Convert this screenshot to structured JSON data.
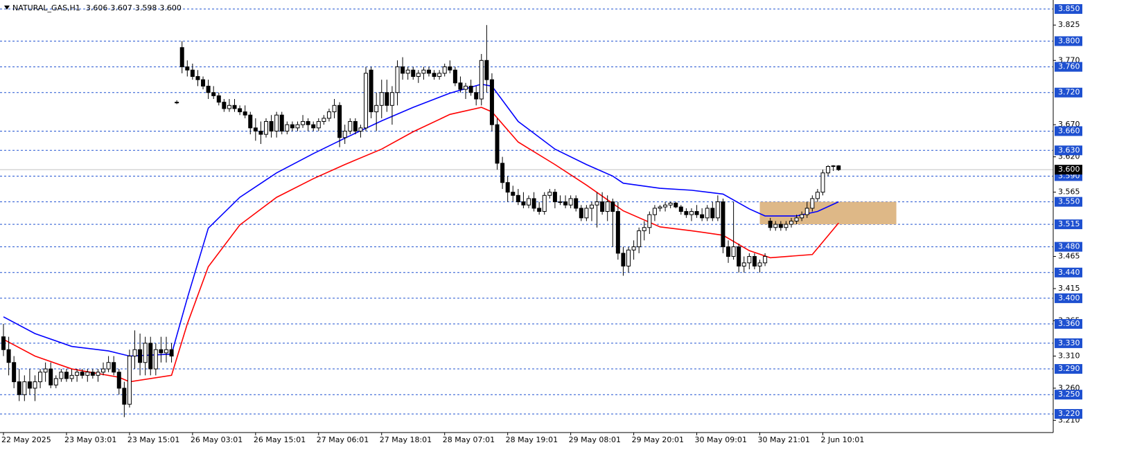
{
  "chart_data": {
    "type": "candlestick",
    "title": "NATURAL_GAS,H1",
    "header_values": [
      "3.606",
      "3.607",
      "3.598",
      "3.600"
    ],
    "ylim": [
      3.191,
      3.864
    ],
    "yticks": [
      {
        "value": 3.825,
        "label": "3.825"
      },
      {
        "value": 3.77,
        "label": "3.770"
      },
      {
        "value": 3.67,
        "label": "3.670"
      },
      {
        "value": 3.62,
        "label": "3.620"
      },
      {
        "value": 3.565,
        "label": "3.565"
      },
      {
        "value": 3.465,
        "label": "3.465"
      },
      {
        "value": 3.415,
        "label": "3.415"
      },
      {
        "value": 3.365,
        "label": "3.365"
      },
      {
        "value": 3.31,
        "label": "3.310"
      },
      {
        "value": 3.26,
        "label": "3.260"
      },
      {
        "value": 3.21,
        "label": "3.210"
      }
    ],
    "levels": [
      {
        "value": 3.85,
        "label": "3.850"
      },
      {
        "value": 3.8,
        "label": "3.800"
      },
      {
        "value": 3.76,
        "label": "3.760"
      },
      {
        "value": 3.72,
        "label": "3.720"
      },
      {
        "value": 3.66,
        "label": "3.660"
      },
      {
        "value": 3.63,
        "label": "3.630"
      },
      {
        "value": 3.59,
        "label": "3.590"
      },
      {
        "value": 3.55,
        "label": "3.550"
      },
      {
        "value": 3.515,
        "label": "3.515"
      },
      {
        "value": 3.48,
        "label": "3.480"
      },
      {
        "value": 3.44,
        "label": "3.440"
      },
      {
        "value": 3.4,
        "label": "3.400"
      },
      {
        "value": 3.36,
        "label": "3.360"
      },
      {
        "value": 3.33,
        "label": "3.330"
      },
      {
        "value": 3.29,
        "label": "3.290"
      },
      {
        "value": 3.25,
        "label": "3.250"
      },
      {
        "value": 3.22,
        "label": "3.220"
      }
    ],
    "level_color": "#1e50d0",
    "current_price": {
      "value": 3.6,
      "label": "3.600"
    },
    "zone": {
      "x": [
        144,
        170
      ],
      "y": [
        3.515,
        3.55
      ],
      "color": "#deb887"
    },
    "categories": [
      "22 May 2025",
      null,
      null,
      null,
      null,
      null,
      null,
      null,
      null,
      null,
      null,
      null,
      "23 May 03:01",
      null,
      null,
      null,
      null,
      null,
      null,
      null,
      null,
      null,
      null,
      null,
      "23 May 15:01",
      null,
      null,
      null,
      null,
      null,
      null,
      null,
      null,
      null,
      null,
      null,
      "26 May 03:01",
      null,
      null,
      null,
      null,
      null,
      null,
      null,
      null,
      null,
      null,
      null,
      "26 May 15:01",
      null,
      null,
      null,
      null,
      null,
      null,
      null,
      null,
      null,
      null,
      null,
      "27 May 06:01",
      null,
      null,
      null,
      null,
      null,
      null,
      null,
      null,
      null,
      null,
      null,
      "27 May 18:01",
      null,
      null,
      null,
      null,
      null,
      null,
      null,
      null,
      null,
      null,
      null,
      "28 May 07:01",
      null,
      null,
      null,
      null,
      null,
      null,
      null,
      null,
      null,
      null,
      null,
      "28 May 19:01",
      null,
      null,
      null,
      null,
      null,
      null,
      null,
      null,
      null,
      null,
      null,
      "29 May 08:01",
      null,
      null,
      null,
      null,
      null,
      null,
      null,
      null,
      null,
      null,
      null,
      "29 May 20:01",
      null,
      null,
      null,
      null,
      null,
      null,
      null,
      null,
      null,
      null,
      null,
      "30 May 09:01",
      null,
      null,
      null,
      null,
      null,
      null,
      null,
      null,
      null,
      null,
      null,
      "30 May 21:01",
      null,
      null,
      null,
      null,
      null,
      null,
      null,
      null,
      null,
      null,
      null,
      "2 Jun 10:01",
      null,
      null,
      null
    ],
    "candles": [
      [
        3.34,
        3.36,
        3.31,
        3.32
      ],
      [
        3.32,
        3.34,
        3.28,
        3.3
      ],
      [
        3.3,
        3.31,
        3.26,
        3.27
      ],
      [
        3.27,
        3.29,
        3.24,
        3.25
      ],
      [
        3.25,
        3.28,
        3.24,
        3.27
      ],
      [
        3.27,
        3.29,
        3.25,
        3.26
      ],
      [
        3.26,
        3.28,
        3.24,
        3.27
      ],
      [
        3.27,
        3.29,
        3.26,
        3.285
      ],
      [
        3.285,
        3.3,
        3.27,
        3.29
      ],
      [
        3.29,
        3.3,
        3.26,
        3.265
      ],
      [
        3.265,
        3.28,
        3.26,
        3.275
      ],
      [
        3.275,
        3.29,
        3.27,
        3.285
      ],
      [
        3.285,
        3.29,
        3.27,
        3.275
      ],
      [
        3.275,
        3.29,
        3.27,
        3.28
      ],
      [
        3.28,
        3.29,
        3.27,
        3.285
      ],
      [
        3.285,
        3.29,
        3.275,
        3.28
      ],
      [
        3.28,
        3.29,
        3.27,
        3.285
      ],
      [
        3.285,
        3.29,
        3.275,
        3.28
      ],
      [
        3.28,
        3.29,
        3.27,
        3.285
      ],
      [
        3.285,
        3.3,
        3.28,
        3.29
      ],
      [
        3.29,
        3.31,
        3.285,
        3.3
      ],
      [
        3.3,
        3.31,
        3.28,
        3.285
      ],
      [
        3.285,
        3.29,
        3.25,
        3.26
      ],
      [
        3.26,
        3.27,
        3.215,
        3.235
      ],
      [
        3.235,
        3.32,
        3.23,
        3.31
      ],
      [
        3.31,
        3.35,
        3.29,
        3.32
      ],
      [
        3.32,
        3.345,
        3.28,
        3.3
      ],
      [
        3.3,
        3.34,
        3.28,
        3.33
      ],
      [
        3.33,
        3.34,
        3.28,
        3.29
      ],
      [
        3.29,
        3.33,
        3.28,
        3.32
      ],
      [
        3.32,
        3.34,
        3.3,
        3.315
      ],
      [
        3.315,
        3.34,
        3.3,
        3.32
      ],
      [
        3.32,
        3.33,
        3.3,
        3.31
      ],
      [
        3.705,
        3.708,
        3.702,
        3.705
      ],
      [
        3.79,
        3.8,
        3.75,
        3.76
      ],
      [
        3.76,
        3.77,
        3.745,
        3.755
      ],
      [
        3.755,
        3.765,
        3.74,
        3.745
      ],
      [
        3.745,
        3.755,
        3.73,
        3.74
      ],
      [
        3.74,
        3.745,
        3.725,
        3.73
      ],
      [
        3.73,
        3.74,
        3.71,
        3.72
      ],
      [
        3.72,
        3.73,
        3.71,
        3.715
      ],
      [
        3.715,
        3.72,
        3.7,
        3.705
      ],
      [
        3.705,
        3.71,
        3.69,
        3.695
      ],
      [
        3.695,
        3.71,
        3.69,
        3.7
      ],
      [
        3.7,
        3.71,
        3.69,
        3.695
      ],
      [
        3.695,
        3.7,
        3.685,
        3.69
      ],
      [
        3.69,
        3.7,
        3.68,
        3.685
      ],
      [
        3.685,
        3.69,
        3.655,
        3.665
      ],
      [
        3.665,
        3.68,
        3.645,
        3.66
      ],
      [
        3.66,
        3.675,
        3.64,
        3.655
      ],
      [
        3.655,
        3.68,
        3.65,
        3.675
      ],
      [
        3.675,
        3.685,
        3.65,
        3.66
      ],
      [
        3.66,
        3.69,
        3.65,
        3.685
      ],
      [
        3.685,
        3.69,
        3.655,
        3.66
      ],
      [
        3.66,
        3.675,
        3.655,
        3.67
      ],
      [
        3.67,
        3.675,
        3.66,
        3.665
      ],
      [
        3.665,
        3.675,
        3.66,
        3.67
      ],
      [
        3.67,
        3.685,
        3.665,
        3.675
      ],
      [
        3.675,
        3.68,
        3.66,
        3.67
      ],
      [
        3.67,
        3.675,
        3.66,
        3.665
      ],
      [
        3.665,
        3.68,
        3.66,
        3.675
      ],
      [
        3.675,
        3.685,
        3.67,
        3.68
      ],
      [
        3.68,
        3.695,
        3.675,
        3.69
      ],
      [
        3.69,
        3.71,
        3.68,
        3.7
      ],
      [
        3.7,
        3.705,
        3.635,
        3.65
      ],
      [
        3.65,
        3.67,
        3.64,
        3.66
      ],
      [
        3.66,
        3.68,
        3.655,
        3.675
      ],
      [
        3.675,
        3.68,
        3.655,
        3.66
      ],
      [
        3.66,
        3.67,
        3.65,
        3.665
      ],
      [
        3.665,
        3.76,
        3.66,
        3.75
      ],
      [
        3.755,
        3.76,
        3.68,
        3.69
      ],
      [
        3.69,
        3.72,
        3.66,
        3.7
      ],
      [
        3.7,
        3.74,
        3.68,
        3.72
      ],
      [
        3.72,
        3.74,
        3.69,
        3.7
      ],
      [
        3.7,
        3.73,
        3.67,
        3.72
      ],
      [
        3.72,
        3.77,
        3.7,
        3.76
      ],
      [
        3.76,
        3.775,
        3.74,
        3.75
      ],
      [
        3.75,
        3.76,
        3.74,
        3.755
      ],
      [
        3.755,
        3.76,
        3.74,
        3.745
      ],
      [
        3.745,
        3.755,
        3.735,
        3.75
      ],
      [
        3.75,
        3.76,
        3.74,
        3.755
      ],
      [
        3.755,
        3.76,
        3.745,
        3.75
      ],
      [
        3.75,
        3.755,
        3.74,
        3.745
      ],
      [
        3.745,
        3.755,
        3.74,
        3.75
      ],
      [
        3.75,
        3.765,
        3.745,
        3.76
      ],
      [
        3.76,
        3.77,
        3.75,
        3.755
      ],
      [
        3.755,
        3.76,
        3.73,
        3.735
      ],
      [
        3.735,
        3.745,
        3.72,
        3.725
      ],
      [
        3.725,
        3.735,
        3.71,
        3.73
      ],
      [
        3.73,
        3.74,
        3.715,
        3.72
      ],
      [
        3.72,
        3.73,
        3.7,
        3.71
      ],
      [
        3.71,
        3.78,
        3.7,
        3.77
      ],
      [
        3.77,
        3.825,
        3.72,
        3.74
      ],
      [
        3.74,
        3.75,
        3.66,
        3.67
      ],
      [
        3.67,
        3.68,
        3.6,
        3.61
      ],
      [
        3.61,
        3.62,
        3.57,
        3.58
      ],
      [
        3.58,
        3.59,
        3.55,
        3.565
      ],
      [
        3.565,
        3.575,
        3.55,
        3.56
      ],
      [
        3.56,
        3.57,
        3.545,
        3.55
      ],
      [
        3.55,
        3.565,
        3.54,
        3.545
      ],
      [
        3.545,
        3.56,
        3.54,
        3.555
      ],
      [
        3.555,
        3.565,
        3.535,
        3.54
      ],
      [
        3.54,
        3.55,
        3.53,
        3.535
      ],
      [
        3.535,
        3.565,
        3.53,
        3.56
      ],
      [
        3.56,
        3.57,
        3.555,
        3.565
      ],
      [
        3.565,
        3.57,
        3.54,
        3.55
      ],
      [
        3.55,
        3.56,
        3.545,
        3.55
      ],
      [
        3.55,
        3.56,
        3.54,
        3.545
      ],
      [
        3.545,
        3.56,
        3.54,
        3.555
      ],
      [
        3.555,
        3.56,
        3.535,
        3.54
      ],
      [
        3.54,
        3.545,
        3.52,
        3.525
      ],
      [
        3.525,
        3.545,
        3.52,
        3.54
      ],
      [
        3.54,
        3.55,
        3.52,
        3.545
      ],
      [
        3.545,
        3.565,
        3.51,
        3.55
      ],
      [
        3.55,
        3.565,
        3.53,
        3.535
      ],
      [
        3.535,
        3.56,
        3.52,
        3.55
      ],
      [
        3.55,
        3.555,
        3.48,
        3.535
      ],
      [
        3.535,
        3.55,
        3.46,
        3.47
      ],
      [
        3.47,
        3.48,
        3.435,
        3.45
      ],
      [
        3.45,
        3.48,
        3.44,
        3.475
      ],
      [
        3.475,
        3.49,
        3.46,
        3.48
      ],
      [
        3.48,
        3.51,
        3.47,
        3.505
      ],
      [
        3.505,
        3.52,
        3.49,
        3.51
      ],
      [
        3.51,
        3.535,
        3.5,
        3.53
      ],
      [
        3.53,
        3.545,
        3.52,
        3.54
      ],
      [
        3.54,
        3.545,
        3.535,
        3.542
      ],
      [
        3.542,
        3.55,
        3.535,
        3.545
      ],
      [
        3.545,
        3.55,
        3.54,
        3.548
      ],
      [
        3.548,
        3.55,
        3.54,
        3.542
      ],
      [
        3.542,
        3.545,
        3.53,
        3.535
      ],
      [
        3.535,
        3.54,
        3.525,
        3.53
      ],
      [
        3.53,
        3.54,
        3.52,
        3.535
      ],
      [
        3.535,
        3.545,
        3.525,
        3.53
      ],
      [
        3.53,
        3.54,
        3.52,
        3.525
      ],
      [
        3.525,
        3.545,
        3.52,
        3.54
      ],
      [
        3.54,
        3.55,
        3.52,
        3.525
      ],
      [
        3.525,
        3.56,
        3.52,
        3.55
      ],
      [
        3.55,
        3.555,
        3.47,
        3.48
      ],
      [
        3.48,
        3.49,
        3.455,
        3.465
      ],
      [
        3.465,
        3.55,
        3.46,
        3.48
      ],
      [
        3.48,
        3.485,
        3.44,
        3.45
      ],
      [
        3.45,
        3.465,
        3.44,
        3.455
      ],
      [
        3.455,
        3.47,
        3.445,
        3.465
      ],
      [
        3.465,
        3.47,
        3.445,
        3.45
      ],
      [
        3.45,
        3.46,
        3.44,
        3.455
      ],
      [
        3.455,
        3.47,
        3.45,
        3.465
      ],
      [
        3.52,
        3.525,
        3.505,
        3.51
      ],
      [
        3.51,
        3.52,
        3.505,
        3.515
      ],
      [
        3.515,
        3.52,
        3.505,
        3.51
      ],
      [
        3.51,
        3.52,
        3.505,
        3.515
      ],
      [
        3.515,
        3.525,
        3.51,
        3.52
      ],
      [
        3.52,
        3.53,
        3.515,
        3.525
      ],
      [
        3.525,
        3.535,
        3.52,
        3.53
      ],
      [
        3.53,
        3.55,
        3.525,
        3.54
      ],
      [
        3.54,
        3.56,
        3.535,
        3.555
      ],
      [
        3.555,
        3.57,
        3.55,
        3.565
      ],
      [
        3.565,
        3.6,
        3.56,
        3.595
      ],
      [
        3.595,
        3.607,
        3.59,
        3.605
      ],
      [
        3.605,
        3.607,
        3.598,
        3.606
      ],
      [
        3.606,
        3.607,
        3.598,
        3.6
      ]
    ],
    "series": [
      {
        "color": "#0000ff",
        "x": [
          0,
          6,
          13,
          20,
          24,
          32,
          35,
          39,
          45,
          52,
          59,
          65,
          72,
          78,
          85,
          91,
          93,
          98,
          105,
          111,
          116,
          118,
          125,
          131,
          137,
          142,
          145,
          151,
          155,
          159
        ],
        "values": [
          3.371,
          3.345,
          3.325,
          3.318,
          3.31,
          3.313,
          3.4,
          3.509,
          3.557,
          3.595,
          3.625,
          3.649,
          3.676,
          3.697,
          3.719,
          3.733,
          3.73,
          3.675,
          3.632,
          3.608,
          3.59,
          3.579,
          3.571,
          3.568,
          3.562,
          3.539,
          3.528,
          3.528,
          3.535,
          3.55
        ]
      },
      {
        "color": "#ff0000",
        "x": [
          0,
          6,
          13,
          22,
          24,
          32,
          35,
          39,
          45,
          52,
          59,
          65,
          72,
          78,
          85,
          91,
          93,
          98,
          105,
          111,
          118,
          125,
          131,
          137,
          142,
          146,
          154,
          159
        ],
        "values": [
          3.336,
          3.31,
          3.29,
          3.277,
          3.27,
          3.28,
          3.36,
          3.449,
          3.514,
          3.557,
          3.586,
          3.608,
          3.632,
          3.659,
          3.686,
          3.697,
          3.69,
          3.643,
          3.608,
          3.576,
          3.536,
          3.511,
          3.505,
          3.498,
          3.474,
          3.463,
          3.468,
          3.517
        ]
      }
    ]
  }
}
